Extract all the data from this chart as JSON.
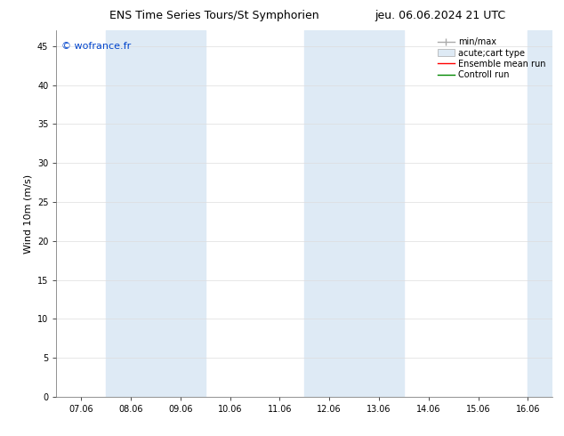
{
  "title_left": "ENS Time Series Tours/St Symphorien",
  "title_right": "jeu. 06.06.2024 21 UTC",
  "ylabel": "Wind 10m (m/s)",
  "watermark": "© wofrance.fr",
  "ylim": [
    0,
    47
  ],
  "yticks": [
    0,
    5,
    10,
    15,
    20,
    25,
    30,
    35,
    40,
    45
  ],
  "xtick_labels": [
    "07.06",
    "08.06",
    "09.06",
    "10.06",
    "11.06",
    "12.06",
    "13.06",
    "14.06",
    "15.06",
    "16.06"
  ],
  "xtick_positions": [
    0,
    1,
    2,
    3,
    4,
    5,
    6,
    7,
    8,
    9
  ],
  "xlim": [
    -0.5,
    9.5
  ],
  "background_color": "#ffffff",
  "plot_bg_color": "#ffffff",
  "shaded_bands": [
    {
      "x_start": 0.5,
      "x_end": 2.5,
      "color": "#deeaf5"
    },
    {
      "x_start": 4.5,
      "x_end": 6.5,
      "color": "#deeaf5"
    },
    {
      "x_start": 9.0,
      "x_end": 9.5,
      "color": "#deeaf5"
    }
  ],
  "legend_entries": [
    {
      "label": "min/max",
      "type": "minmax",
      "color": "#aaaaaa"
    },
    {
      "label": "acute;cart type",
      "type": "box",
      "color": "#ccddee"
    },
    {
      "label": "Ensemble mean run",
      "type": "line",
      "color": "#ff0000"
    },
    {
      "label": "Controll run",
      "type": "line",
      "color": "#008800"
    }
  ],
  "title_fontsize": 9,
  "tick_fontsize": 7,
  "ylabel_fontsize": 8,
  "legend_fontsize": 7,
  "watermark_color": "#0044cc",
  "watermark_fontsize": 8
}
